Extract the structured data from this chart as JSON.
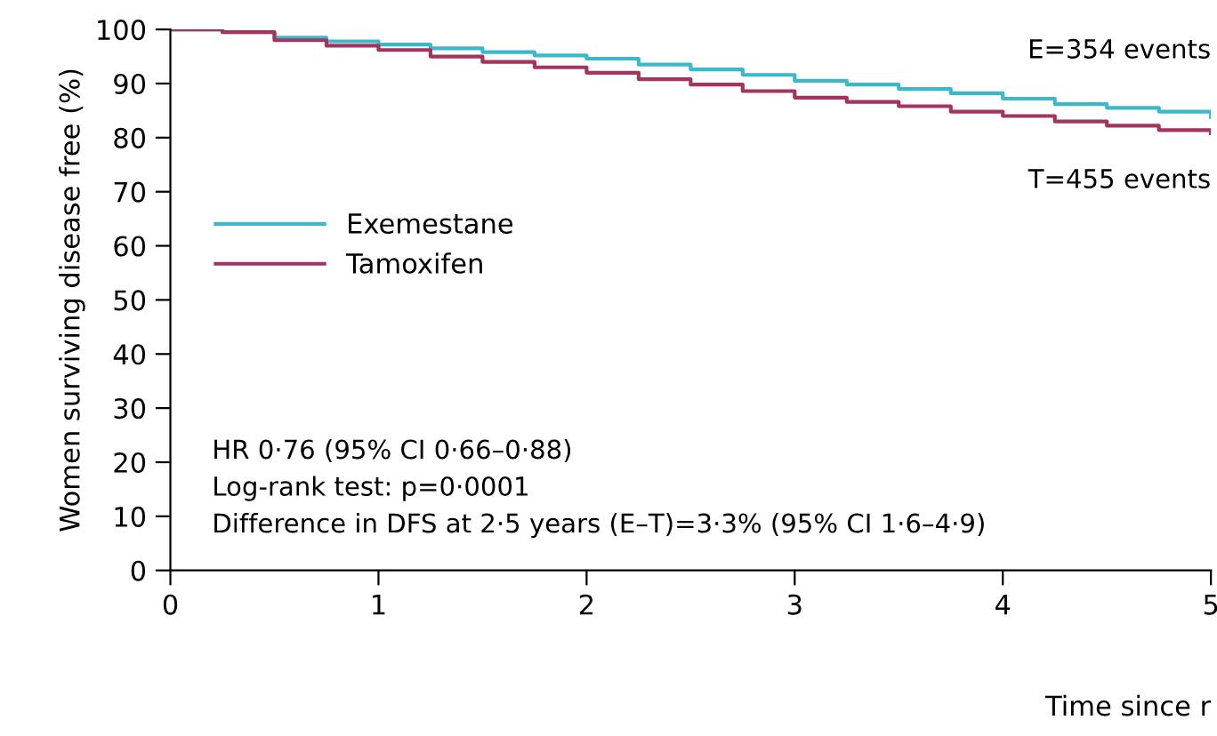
{
  "chart_data": {
    "type": "step",
    "ylabel": "Women surviving disease free (%)",
    "xlabel": "Time since r",
    "x": [
      0,
      0.25,
      0.5,
      0.75,
      1,
      1.25,
      1.5,
      1.75,
      2,
      2.25,
      2.5,
      2.75,
      3,
      3.25,
      3.5,
      3.75,
      4,
      4.25,
      4.5,
      4.75,
      5
    ],
    "series": [
      {
        "name": "Exemestane",
        "color": "#3cb9c9",
        "values": [
          100,
          99.5,
          98.5,
          97.8,
          97.2,
          96.5,
          95.8,
          95.2,
          94.6,
          93.5,
          92.6,
          91.6,
          90.5,
          89.8,
          89,
          88.2,
          87.2,
          86.2,
          85.5,
          84.8,
          83.8
        ]
      },
      {
        "name": "Tamoxifen",
        "color": "#a3335f",
        "values": [
          100,
          99.5,
          98,
          97,
          96.2,
          95,
          94,
          93,
          92,
          90.8,
          89.8,
          88.6,
          87.4,
          86.6,
          85.8,
          84.8,
          84,
          83,
          82.2,
          81.4,
          80.8
        ]
      }
    ],
    "xlim": [
      0,
      5
    ],
    "xticks": [
      0,
      1,
      2,
      3,
      4,
      5
    ],
    "ylim": [
      0,
      100
    ],
    "yticks": [
      0,
      10,
      20,
      30,
      40,
      50,
      60,
      70,
      80,
      90,
      100
    ],
    "legend": "center left",
    "grid": false,
    "annotations": [
      "E=354 events",
      "T=455 events",
      "HR 0·76 (95% CI 0·66–0·88)\nLog-rank test: p=0·0001\nDifference in DFS at 2·5 years (E–T)=3·3% (95% CI 1·6–4·9)"
    ]
  }
}
